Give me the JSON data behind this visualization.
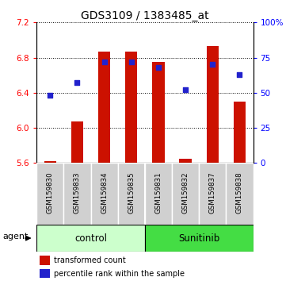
{
  "title": "GDS3109 / 1383485_at",
  "samples": [
    "GSM159830",
    "GSM159833",
    "GSM159834",
    "GSM159835",
    "GSM159831",
    "GSM159832",
    "GSM159837",
    "GSM159838"
  ],
  "group_labels": [
    "control",
    "Sunitinib"
  ],
  "bar_color": "#cc1100",
  "dot_color": "#2222cc",
  "transformed_counts": [
    5.62,
    6.07,
    6.87,
    6.87,
    6.75,
    5.65,
    6.93,
    6.3
  ],
  "percentile_ranks": [
    48,
    57,
    72,
    72,
    68,
    52,
    70,
    63
  ],
  "ylim_left": [
    5.6,
    7.2
  ],
  "ylim_right": [
    0,
    100
  ],
  "yticks_left": [
    5.6,
    6.0,
    6.4,
    6.8,
    7.2
  ],
  "yticks_right": [
    0,
    25,
    50,
    75,
    100
  ],
  "ytick_labels_right": [
    "0",
    "25",
    "50",
    "75",
    "100%"
  ],
  "agent_label": "agent",
  "legend_tc": "transformed count",
  "legend_pr": "percentile rank within the sample",
  "bar_baseline": 5.6,
  "ctrl_color": "#ccffcc",
  "sun_color": "#44dd44"
}
